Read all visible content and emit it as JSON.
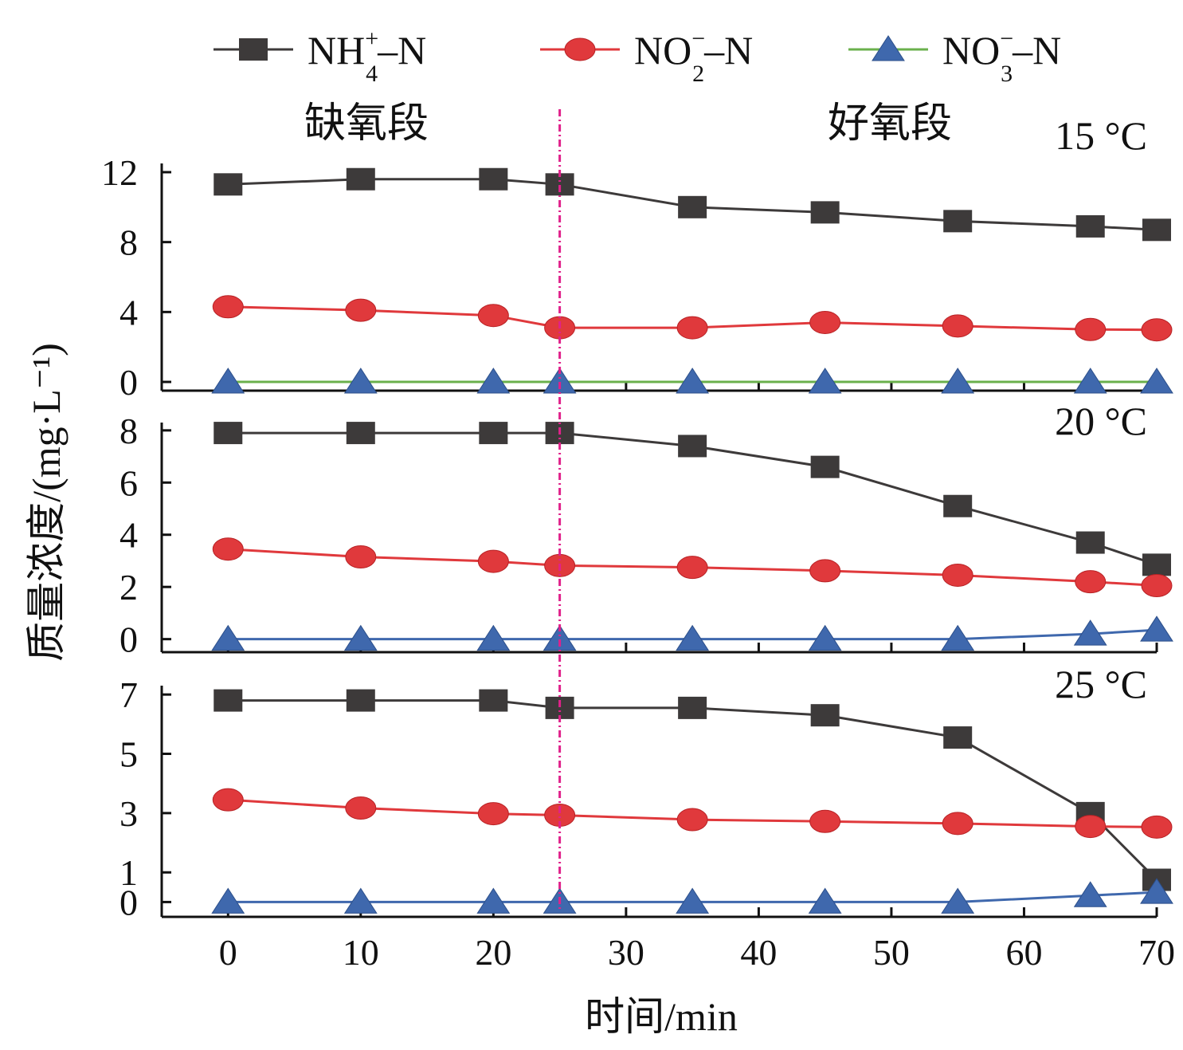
{
  "chart_data": {
    "type": "line",
    "x": [
      0,
      10,
      20,
      25,
      35,
      45,
      55,
      65,
      70
    ],
    "xticks": [
      0,
      10,
      20,
      30,
      40,
      50,
      60,
      70
    ],
    "xlim": [
      -5,
      70
    ],
    "xlabel": "时间/min",
    "ylabel": "质量浓度/(mg·L⁻¹)",
    "phase_divider_x": 25,
    "phase_labels": {
      "left": "缺氧段",
      "right": "好氧段"
    },
    "legend": {
      "placement": "top",
      "entries": [
        {
          "id": "nh4",
          "base": "NH",
          "sub": "4",
          "sup": "+",
          "tail": "–N",
          "color": "#3d3a3a",
          "marker": "square"
        },
        {
          "id": "no2",
          "base": "NO",
          "sub": "2",
          "sup": "−",
          "tail": "–N",
          "color": "#e0393c",
          "marker": "circle"
        },
        {
          "id": "no3",
          "base": "NO",
          "sub": "3",
          "sup": "−",
          "tail": "–N",
          "color": "#3f68ad",
          "marker": "triangle",
          "line_color": "#6ab04c"
        }
      ]
    },
    "panels": [
      {
        "label": "15 °C",
        "ylim": [
          -0.5,
          12.5
        ],
        "yticks": [
          0,
          4,
          8,
          12
        ],
        "series": [
          {
            "id": "nh4",
            "values": [
              11.3,
              11.6,
              11.6,
              11.3,
              10.0,
              9.7,
              9.2,
              8.9,
              8.7
            ]
          },
          {
            "id": "no2",
            "values": [
              4.3,
              4.1,
              3.8,
              3.1,
              3.1,
              3.4,
              3.2,
              3.0,
              2.98
            ]
          },
          {
            "id": "no3",
            "values": [
              0,
              0,
              0,
              0,
              0,
              0,
              0,
              0,
              0
            ],
            "line_color": "#6ab04c"
          }
        ]
      },
      {
        "label": "20 °C",
        "ylim": [
          -0.5,
          8.3
        ],
        "yticks": [
          0,
          2,
          4,
          6,
          8
        ],
        "series": [
          {
            "id": "nh4",
            "values": [
              7.9,
              7.9,
              7.9,
              7.9,
              7.4,
              6.6,
              5.1,
              3.7,
              2.85
            ]
          },
          {
            "id": "no2",
            "values": [
              3.45,
              3.15,
              2.98,
              2.82,
              2.75,
              2.62,
              2.45,
              2.2,
              2.05
            ]
          },
          {
            "id": "no3",
            "values": [
              0,
              0,
              0,
              0,
              0,
              0,
              0,
              0.2,
              0.35
            ],
            "line_color": "#3f68ad"
          }
        ]
      },
      {
        "label": "25 °C",
        "ylim": [
          -0.5,
          7.3
        ],
        "yticks": [
          0,
          1,
          3,
          5,
          7
        ],
        "series": [
          {
            "id": "nh4",
            "values": [
              6.8,
              6.8,
              6.8,
              6.55,
              6.55,
              6.3,
              5.55,
              3.0,
              0.75
            ]
          },
          {
            "id": "no2",
            "values": [
              3.45,
              3.17,
              2.98,
              2.93,
              2.78,
              2.72,
              2.65,
              2.55,
              2.53
            ]
          },
          {
            "id": "no3",
            "values": [
              0,
              0,
              0,
              0,
              0,
              0,
              0,
              0.22,
              0.33
            ],
            "line_color": "#3f68ad"
          }
        ]
      }
    ]
  }
}
